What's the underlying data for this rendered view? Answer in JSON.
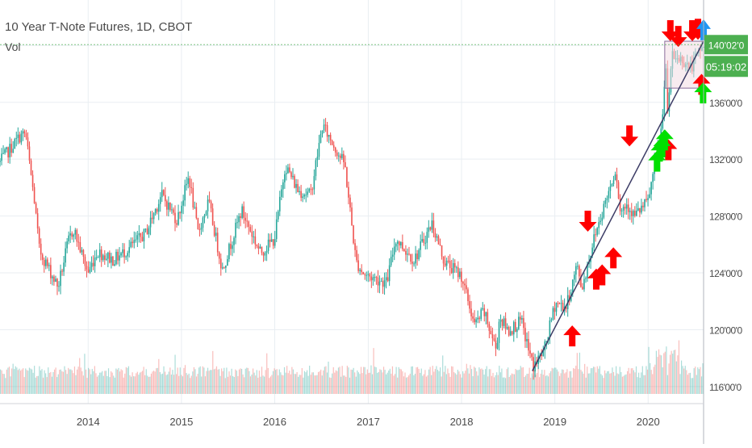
{
  "legend": {
    "title": "10 Year T-Note Futures, 1D, CBOT",
    "volume_label": "Vol"
  },
  "colors": {
    "up": "#26a69a",
    "down": "#ef5350",
    "grid": "#e9eef2",
    "axis_text": "#4a4a4a",
    "price_badge": "#4caf50",
    "trendline": "#3c3c66",
    "arrow_down": "#ff0000",
    "arrow_up": "#ff0000",
    "arrow_green": "#00e000",
    "arrow_blue": "#2196f3",
    "box_fill": "#f3dde3",
    "box_stroke": "#8a6c9a"
  },
  "chart_data": {
    "type": "candlestick",
    "title": "10 Year T-Note Futures, 1D, CBOT",
    "x_range": [
      "2013-01-21",
      "2020-08-05"
    ],
    "ylim": [
      114.8,
      143.2
    ],
    "yticks": [
      116,
      120,
      124,
      128,
      132,
      136,
      140
    ],
    "ytick_labels": [
      "116'00'0",
      "120'00'0",
      "124'00'0",
      "128'00'0",
      "132'00'0",
      "136'00'0",
      "140'00'0"
    ],
    "xticks": [
      "2014",
      "2015",
      "2016",
      "2017",
      "2018",
      "2019",
      "2020"
    ],
    "xtick_dates": [
      "2014-01-01",
      "2015-01-01",
      "2016-01-01",
      "2017-01-01",
      "2018-01-01",
      "2019-01-01",
      "2020-01-01"
    ],
    "grid": true,
    "last_price": "140'02'0",
    "last_price_value": 140.06,
    "countdown": "05:19:02",
    "price_path": [
      [
        "2013-01-21",
        131.8
      ],
      [
        "2013-04-08",
        133.6
      ],
      [
        "2013-05-01",
        133.8
      ],
      [
        "2013-06-05",
        129.0
      ],
      [
        "2013-06-24",
        125.6
      ],
      [
        "2013-09-05",
        123.0
      ],
      [
        "2013-10-15",
        126.2
      ],
      [
        "2013-11-05",
        127.1
      ],
      [
        "2013-12-31",
        124.0
      ],
      [
        "2014-02-05",
        125.5
      ],
      [
        "2014-04-10",
        124.9
      ],
      [
        "2014-06-01",
        125.6
      ],
      [
        "2014-08-14",
        126.8
      ],
      [
        "2014-10-15",
        129.5
      ],
      [
        "2014-12-15",
        127.7
      ],
      [
        "2015-01-30",
        130.8
      ],
      [
        "2015-03-06",
        126.8
      ],
      [
        "2015-04-17",
        129.0
      ],
      [
        "2015-06-10",
        124.2
      ],
      [
        "2015-08-24",
        128.4
      ],
      [
        "2015-11-06",
        125.4
      ],
      [
        "2015-12-31",
        126.4
      ],
      [
        "2016-02-11",
        131.6
      ],
      [
        "2016-04-01",
        129.8
      ],
      [
        "2016-05-20",
        129.5
      ],
      [
        "2016-07-06",
        134.4
      ],
      [
        "2016-08-12",
        133.2
      ],
      [
        "2016-10-01",
        131.6
      ],
      [
        "2016-11-14",
        124.8
      ],
      [
        "2016-12-15",
        123.9
      ],
      [
        "2017-03-14",
        123.3
      ],
      [
        "2017-04-18",
        126.4
      ],
      [
        "2017-06-30",
        124.9
      ],
      [
        "2017-09-07",
        127.5
      ],
      [
        "2017-10-25",
        124.8
      ],
      [
        "2017-12-31",
        123.8
      ],
      [
        "2018-02-21",
        120.3
      ],
      [
        "2018-03-28",
        121.3
      ],
      [
        "2018-05-17",
        118.6
      ],
      [
        "2018-05-29",
        120.9
      ],
      [
        "2018-07-03",
        119.9
      ],
      [
        "2018-08-22",
        120.6
      ],
      [
        "2018-10-08",
        117.4
      ],
      [
        "2018-11-20",
        118.5
      ],
      [
        "2019-01-03",
        121.9
      ],
      [
        "2019-02-15",
        121.6
      ],
      [
        "2019-03-28",
        124.5
      ],
      [
        "2019-04-17",
        122.9
      ],
      [
        "2019-06-04",
        126.5
      ],
      [
        "2019-08-28",
        131.4
      ],
      [
        "2019-09-13",
        128.3
      ],
      [
        "2019-10-10",
        128.9
      ],
      [
        "2019-11-08",
        128.0
      ],
      [
        "2019-12-31",
        129.0
      ],
      [
        "2020-02-03",
        132.2
      ],
      [
        "2020-02-26",
        134.6
      ],
      [
        "2020-03-09",
        139.4
      ],
      [
        "2020-03-18",
        134.5
      ],
      [
        "2020-04-01",
        139.2
      ],
      [
        "2020-05-15",
        139.0
      ],
      [
        "2020-06-15",
        138.4
      ],
      [
        "2020-07-15",
        139.4
      ],
      [
        "2020-08-05",
        140.06
      ]
    ],
    "trendline": {
      "start": [
        "2018-10-05",
        117.1
      ],
      "end": [
        "2020-08-05",
        140.3
      ]
    },
    "range_box": {
      "start": "2020-03-06",
      "end": "2020-08-05",
      "top": 140.3,
      "bottom": 137.0
    },
    "volume": {
      "relative_scale": [
        0,
        1
      ]
    },
    "annotations": [
      {
        "type": "arrow_up",
        "color": "red",
        "date": "2019-03-10",
        "price": 120.3
      },
      {
        "type": "arrow_down",
        "color": "red",
        "date": "2019-05-10",
        "price": 126.9
      },
      {
        "type": "arrow_up",
        "color": "red",
        "date": "2019-06-12",
        "price": 124.3
      },
      {
        "type": "arrow_up",
        "color": "red",
        "date": "2019-07-05",
        "price": 124.6
      },
      {
        "type": "arrow_up",
        "color": "red",
        "date": "2019-08-18",
        "price": 125.8
      },
      {
        "type": "arrow_down",
        "color": "red",
        "date": "2019-10-20",
        "price": 132.9
      },
      {
        "type": "arrow_up",
        "color": "red",
        "date": "2020-03-20",
        "price": 133.4
      },
      {
        "type": "arrow_down",
        "color": "red",
        "date": "2020-03-28",
        "price": 140.3
      },
      {
        "type": "arrow_down",
        "color": "red",
        "date": "2020-04-28",
        "price": 139.9
      },
      {
        "type": "arrow_down",
        "color": "red",
        "date": "2020-06-22",
        "price": 140.3
      },
      {
        "type": "arrow_down",
        "color": "red",
        "date": "2020-07-14",
        "price": 140.4
      },
      {
        "type": "arrow_up",
        "color": "red",
        "date": "2020-07-28",
        "price": 138.0
      },
      {
        "type": "arrow_up",
        "color": "green",
        "date": "2020-02-05",
        "price": 132.6
      },
      {
        "type": "arrow_up",
        "color": "green",
        "date": "2020-02-15",
        "price": 133.3
      },
      {
        "type": "arrow_up",
        "color": "green",
        "date": "2020-02-25",
        "price": 133.6
      },
      {
        "type": "arrow_up",
        "color": "green",
        "date": "2020-03-06",
        "price": 134.1
      },
      {
        "type": "arrow_up",
        "color": "green",
        "date": "2020-08-03",
        "price": 137.4
      },
      {
        "type": "arrow_up",
        "color": "blue",
        "date": "2020-08-05",
        "price": 141.5
      }
    ]
  }
}
